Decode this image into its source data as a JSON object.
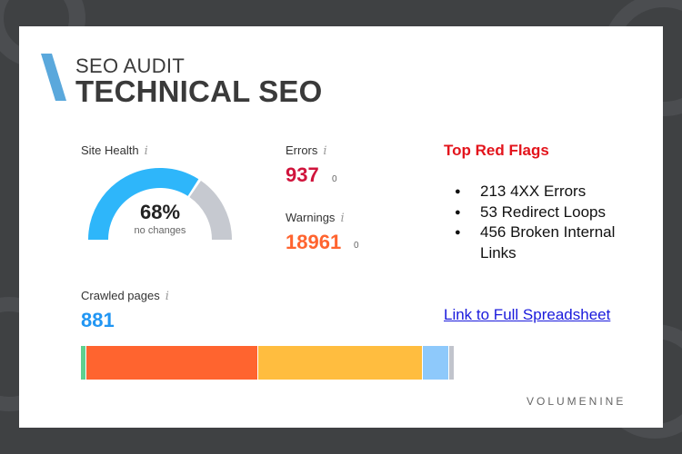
{
  "header": {
    "subtitle": "SEO AUDIT",
    "title": "TECHNICAL SEO"
  },
  "site_health": {
    "label": "Site Health",
    "info_glyph": "i",
    "percent": 68,
    "percent_text": "68%",
    "change_text": "no changes"
  },
  "errors": {
    "label": "Errors",
    "info_glyph": "i",
    "value": "937",
    "change": "0"
  },
  "warnings": {
    "label": "Warnings",
    "info_glyph": "i",
    "value": "18961",
    "change": "0"
  },
  "red_flags": {
    "title": "Top Red Flags",
    "items": [
      "213 4XX Errors",
      "53 Redirect Loops",
      "456 Broken Internal Links"
    ]
  },
  "crawled": {
    "label": "Crawled pages",
    "info_glyph": "i",
    "value": "881",
    "segments": [
      {
        "share": 0.013,
        "color": "#5fd08f"
      },
      {
        "share": 0.46,
        "color": "#ff642f"
      },
      {
        "share": 0.44,
        "color": "#ffbd3f"
      },
      {
        "share": 0.067,
        "color": "#8ec9fb"
      },
      {
        "share": 0.012,
        "color": "#c1c4cc"
      }
    ]
  },
  "link": {
    "label": "Link to Full Spreadsheet"
  },
  "brand": {
    "name": "VOLUMENINE"
  },
  "colors": {
    "gauge_fill": "#2eb6fa",
    "gauge_track": "#c6c9d0",
    "errors": "#d0143c",
    "warnings": "#ff642f",
    "crawled": "#2196f3",
    "accent_bar": "#5aa8dc",
    "red_flags": "#e3141c"
  }
}
